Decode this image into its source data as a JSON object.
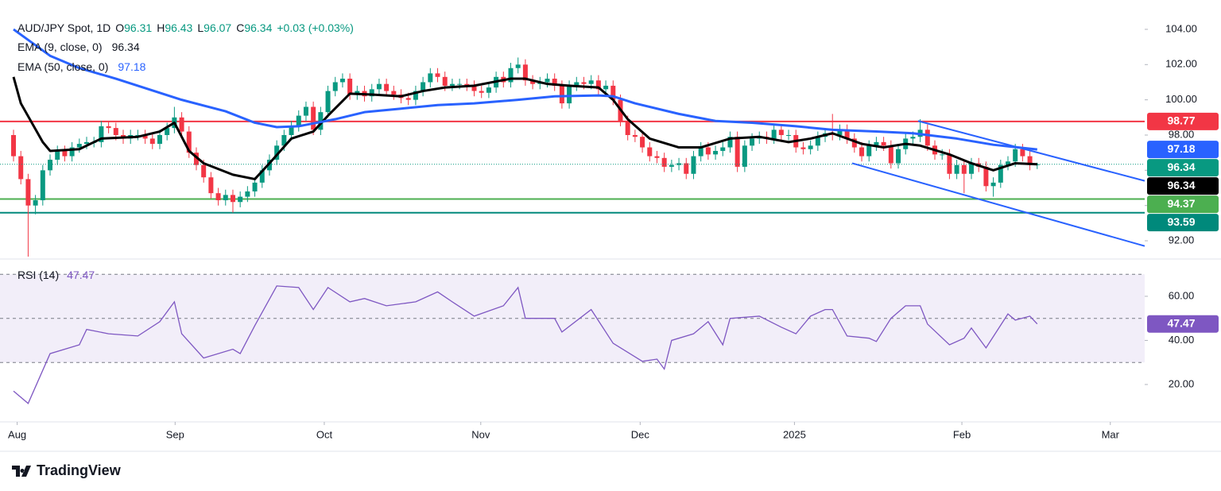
{
  "chart_data": [
    {
      "type": "candlestick",
      "title": "AUD/JPY Spot, 1D",
      "ohlc_labels": [
        "O",
        "H",
        "L",
        "C"
      ],
      "change_label": "+0.03 (+0.03%)",
      "up_color": "#089981",
      "down_color": "#f23645",
      "candles": {
        "open": [
          98.0,
          96.8,
          95.5,
          94.0,
          94.3,
          96.0,
          96.6,
          97.1,
          96.8,
          97.3,
          97.5,
          97.6,
          97.6,
          98.5,
          98.4,
          98.0,
          97.8,
          98.0,
          98.0,
          97.8,
          97.5,
          98.0,
          98.4,
          99.0,
          98.2,
          97.0,
          96.3,
          95.6,
          94.7,
          94.3,
          94.6,
          94.2,
          94.5,
          94.8,
          95.3,
          96.0,
          96.6,
          97.4,
          98.0,
          98.5,
          99.1,
          99.6,
          98.3,
          99.3,
          100.5,
          101.0,
          101.2,
          100.3,
          100.5,
          100.2,
          100.6,
          100.9,
          100.5,
          100.3,
          100.1,
          100.0,
          100.5,
          101.0,
          101.5,
          101.3,
          100.8,
          100.9,
          100.9,
          100.8,
          100.5,
          100.4,
          100.7,
          101.3,
          101.0,
          101.8,
          102.0,
          101.1,
          100.9,
          101.0,
          101.2,
          100.8,
          99.8,
          100.8,
          101.0,
          100.9,
          101.1,
          100.6,
          100.8,
          100.0,
          98.8,
          98.0,
          97.9,
          97.3,
          96.8,
          96.7,
          96.2,
          96.3,
          96.4,
          95.8,
          96.8,
          97.3,
          96.9,
          97.1,
          97.3,
          97.9,
          96.2,
          97.4,
          97.8,
          97.9,
          97.8,
          98.3,
          98.0,
          98.0,
          97.3,
          97.2,
          97.4,
          97.9,
          98.1,
          98.0,
          98.3,
          97.8,
          97.3,
          96.8,
          97.4,
          97.6,
          97.4,
          96.4,
          97.2,
          97.8,
          97.9,
          98.3,
          97.4,
          96.9,
          96.9,
          95.8,
          96.3,
          95.8,
          96.4,
          96.2,
          95.1,
          95.3,
          96.3,
          96.5,
          97.2,
          96.8,
          96.31
        ],
        "high": [
          98.3,
          97.1,
          95.8,
          94.6,
          96.3,
          96.9,
          97.4,
          97.4,
          97.6,
          97.8,
          97.9,
          97.9,
          98.8,
          98.8,
          98.7,
          98.3,
          98.3,
          98.3,
          98.3,
          98.1,
          98.3,
          98.7,
          99.6,
          99.3,
          98.5,
          97.3,
          96.6,
          95.9,
          95.0,
          94.9,
          94.9,
          94.8,
          95.1,
          95.6,
          96.3,
          96.9,
          97.7,
          98.3,
          98.8,
          99.4,
          99.9,
          99.9,
          99.6,
          100.8,
          101.3,
          101.5,
          101.5,
          100.8,
          100.8,
          100.9,
          101.2,
          101.2,
          100.8,
          100.6,
          100.4,
          100.8,
          101.3,
          101.8,
          101.8,
          101.6,
          101.2,
          101.2,
          101.2,
          101.1,
          100.8,
          101.0,
          101.6,
          101.6,
          102.1,
          102.4,
          102.3,
          101.4,
          101.3,
          101.5,
          101.5,
          101.1,
          101.1,
          101.3,
          101.3,
          101.4,
          101.4,
          101.1,
          101.1,
          100.3,
          99.1,
          98.3,
          98.2,
          97.6,
          97.1,
          97.0,
          96.6,
          96.7,
          96.7,
          97.1,
          97.6,
          97.6,
          97.4,
          97.6,
          98.2,
          98.2,
          97.7,
          98.1,
          98.2,
          98.2,
          98.6,
          98.6,
          98.3,
          98.3,
          97.6,
          97.7,
          98.2,
          98.4,
          99.2,
          98.6,
          98.6,
          98.1,
          97.6,
          97.7,
          97.9,
          97.9,
          97.7,
          97.5,
          98.1,
          98.2,
          98.9,
          98.6,
          97.7,
          97.2,
          97.2,
          96.6,
          96.6,
          96.7,
          96.7,
          96.5,
          95.6,
          96.6,
          96.8,
          97.5,
          97.5,
          97.1,
          96.43
        ],
        "low": [
          96.5,
          95.2,
          91.1,
          93.5,
          94.0,
          95.7,
          96.3,
          96.5,
          96.5,
          97.0,
          97.2,
          97.3,
          97.3,
          98.1,
          97.7,
          97.5,
          97.5,
          97.7,
          97.5,
          97.2,
          97.2,
          97.7,
          98.1,
          97.9,
          96.7,
          96.0,
          95.3,
          94.4,
          94.0,
          94.0,
          93.6,
          93.9,
          94.2,
          94.5,
          95.0,
          95.7,
          96.3,
          97.1,
          97.7,
          98.2,
          98.8,
          98.0,
          98.0,
          99.0,
          100.2,
          100.7,
          100.0,
          100.0,
          99.9,
          99.9,
          100.3,
          100.2,
          100.0,
          99.8,
          99.7,
          99.7,
          100.2,
          100.7,
          101.0,
          100.5,
          100.5,
          100.6,
          100.5,
          100.2,
          100.1,
          100.1,
          100.4,
          100.7,
          100.7,
          101.5,
          100.8,
          100.6,
          100.6,
          100.7,
          100.5,
          99.5,
          99.5,
          100.5,
          100.6,
          100.6,
          100.3,
          100.3,
          99.7,
          98.5,
          97.7,
          97.6,
          97.0,
          96.5,
          96.4,
          95.9,
          95.9,
          96.0,
          95.5,
          95.5,
          96.5,
          96.6,
          96.6,
          96.8,
          97.0,
          95.9,
          95.9,
          97.1,
          97.5,
          97.5,
          97.5,
          97.7,
          97.7,
          97.0,
          96.9,
          96.9,
          97.1,
          97.6,
          97.7,
          97.7,
          97.5,
          97.0,
          96.5,
          96.5,
          97.1,
          97.1,
          96.1,
          96.1,
          96.9,
          97.5,
          97.6,
          97.1,
          96.6,
          96.6,
          95.5,
          95.5,
          94.7,
          95.5,
          95.9,
          94.8,
          94.5,
          95.0,
          96.0,
          96.2,
          96.5,
          96.0,
          96.07
        ],
        "close": [
          96.8,
          95.5,
          94.0,
          94.3,
          96.0,
          96.6,
          97.1,
          96.8,
          97.3,
          97.5,
          97.6,
          97.6,
          98.5,
          98.4,
          98.0,
          97.8,
          98.0,
          98.0,
          97.8,
          97.5,
          98.0,
          98.4,
          99.0,
          98.2,
          97.0,
          96.3,
          95.6,
          94.7,
          94.3,
          94.6,
          94.2,
          94.5,
          94.8,
          95.3,
          96.0,
          96.6,
          97.4,
          98.0,
          98.5,
          99.1,
          99.6,
          98.3,
          99.3,
          100.5,
          101.0,
          101.2,
          100.3,
          100.5,
          100.2,
          100.6,
          100.9,
          100.5,
          100.3,
          100.1,
          100.0,
          100.5,
          101.0,
          101.5,
          101.3,
          100.8,
          100.9,
          100.9,
          100.8,
          100.5,
          100.4,
          100.7,
          101.3,
          101.0,
          101.8,
          102.0,
          101.1,
          100.9,
          101.0,
          101.2,
          100.8,
          99.8,
          100.8,
          101.0,
          100.9,
          101.1,
          100.6,
          100.8,
          100.0,
          98.8,
          98.0,
          97.9,
          97.3,
          96.8,
          96.7,
          96.2,
          96.3,
          96.4,
          95.8,
          96.8,
          97.3,
          96.9,
          97.1,
          97.3,
          97.9,
          96.2,
          97.4,
          97.8,
          97.9,
          97.8,
          98.3,
          98.0,
          98.0,
          97.3,
          97.2,
          97.4,
          97.9,
          98.1,
          98.0,
          98.3,
          97.8,
          97.3,
          96.8,
          97.4,
          97.6,
          97.4,
          96.4,
          97.2,
          97.8,
          97.9,
          98.3,
          97.4,
          96.9,
          96.9,
          95.8,
          96.3,
          95.8,
          96.4,
          96.2,
          95.1,
          95.3,
          96.3,
          96.5,
          97.2,
          96.8,
          96.3,
          96.34
        ]
      },
      "xlim": [
        -1.85,
        154.7
      ],
      "xticks": [
        {
          "value": 0.5,
          "label": "Aug"
        },
        {
          "value": 22.1,
          "label": "Sep"
        },
        {
          "value": 42.5,
          "label": "Oct"
        },
        {
          "value": 63.9,
          "label": "Nov"
        },
        {
          "value": 85.7,
          "label": "Dec"
        },
        {
          "value": 106.8,
          "label": "2025"
        },
        {
          "value": 129.7,
          "label": "Feb"
        },
        {
          "value": 150,
          "label": "Mar"
        }
      ],
      "ylim": [
        91.1,
        105.44
      ],
      "yticks": [
        {
          "value": 92,
          "label": "92.00"
        },
        {
          "value": 94,
          "label": "94.00"
        },
        {
          "value": 96,
          "label": "96.00"
        },
        {
          "value": 98,
          "label": "98.00"
        },
        {
          "value": 100,
          "label": "100.00"
        },
        {
          "value": 102,
          "label": "102.00"
        },
        {
          "value": 104,
          "label": "104.00"
        }
      ],
      "series": [
        {
          "name": "EMA (9, close, 0)",
          "color": "#000000",
          "x": [
            0,
            1,
            4,
            5,
            9,
            12,
            17,
            20,
            22,
            24,
            26,
            30,
            33,
            35,
            38,
            41,
            43,
            46,
            49,
            53,
            56,
            59,
            63,
            68,
            70,
            73,
            76,
            80,
            82,
            84,
            87,
            91,
            94,
            98,
            102,
            106,
            109,
            112,
            116,
            119,
            122,
            124,
            128,
            131,
            134,
            137,
            140
          ],
          "values": [
            101.3,
            99.8,
            97.6,
            97.1,
            97.2,
            97.8,
            97.9,
            98.2,
            98.7,
            97.1,
            96.4,
            95.75,
            95.5,
            96.4,
            97.8,
            98.2,
            99.1,
            100.35,
            100.3,
            100.2,
            100.5,
            100.7,
            100.8,
            101.2,
            101.2,
            100.9,
            100.8,
            100.7,
            100.0,
            98.9,
            97.8,
            97.3,
            97.3,
            97.8,
            97.9,
            97.6,
            97.8,
            98.1,
            97.5,
            97.3,
            97.5,
            97.4,
            96.9,
            96.4,
            96.0,
            96.4,
            96.34
          ]
        },
        {
          "name": "EMA (50, close, 0)",
          "color": "#2962ff",
          "x": [
            0,
            5,
            9,
            14,
            20,
            23,
            29,
            33,
            36,
            39,
            44,
            48,
            53,
            58,
            63,
            69,
            74,
            80,
            82,
            85,
            91,
            96,
            101,
            107,
            112,
            118,
            123,
            129,
            134,
            140
          ],
          "values": [
            104.0,
            102.5,
            101.8,
            101.2,
            100.4,
            100.0,
            99.35,
            98.7,
            98.45,
            98.5,
            98.9,
            99.3,
            99.5,
            99.7,
            99.8,
            100.0,
            100.2,
            100.25,
            100.2,
            99.8,
            99.2,
            98.8,
            98.7,
            98.5,
            98.3,
            98.2,
            98.1,
            97.8,
            97.45,
            97.18
          ]
        }
      ],
      "price_lines": [
        {
          "value": 98.77,
          "color": "#f23645"
        },
        {
          "value": 94.37,
          "color": "#4caf50"
        },
        {
          "value": 93.59,
          "color": "#00897b"
        }
      ],
      "trendlines": [
        {
          "color": "#2962ff",
          "x": [
            123.7,
            154.7
          ],
          "y": [
            98.8,
            95.4
          ]
        },
        {
          "color": "#2962ff",
          "x": [
            114.7,
            154.7
          ],
          "y": [
            96.4,
            91.7
          ]
        }
      ]
    },
    {
      "type": "line",
      "title": "RSI (14)",
      "series": [
        {
          "color": "#7e57c2",
          "x": [
            0,
            2,
            5,
            9,
            10,
            13,
            17,
            20,
            22,
            23,
            26,
            30,
            31,
            33,
            36,
            39,
            41,
            43,
            46,
            48,
            51,
            55,
            58,
            60,
            63,
            67,
            69,
            70,
            74,
            75,
            79,
            82,
            86,
            88,
            89,
            90,
            93,
            95,
            97,
            98,
            102,
            105,
            107,
            109,
            111,
            112,
            114,
            117,
            118,
            120,
            122,
            124,
            125,
            128,
            130,
            131,
            133,
            136,
            137,
            139,
            140
          ],
          "values": [
            17,
            11.4,
            34,
            38,
            45,
            43,
            42,
            48.5,
            57.5,
            43,
            32,
            36,
            34,
            46.7,
            64.7,
            64,
            54,
            64,
            57.5,
            59,
            55.7,
            57.5,
            62,
            57.5,
            51,
            55.7,
            64,
            50,
            50,
            43.8,
            54,
            38.7,
            30.5,
            31.5,
            27,
            40,
            43,
            48.5,
            38,
            50,
            51,
            46,
            43,
            51,
            54,
            54,
            42,
            41,
            39.5,
            50,
            55.7,
            55.7,
            47.4,
            38,
            41,
            45.6,
            36.6,
            52,
            49.2,
            51,
            47.47
          ]
        }
      ],
      "levels": [
        70,
        50,
        30
      ],
      "ylim": [
        3.4,
        76.2
      ],
      "yticks": [
        {
          "value": 20,
          "label": "20.00"
        },
        {
          "value": 40,
          "label": "40.00"
        },
        {
          "value": 60,
          "label": "60.00"
        }
      ]
    }
  ],
  "footer": "TradingView"
}
